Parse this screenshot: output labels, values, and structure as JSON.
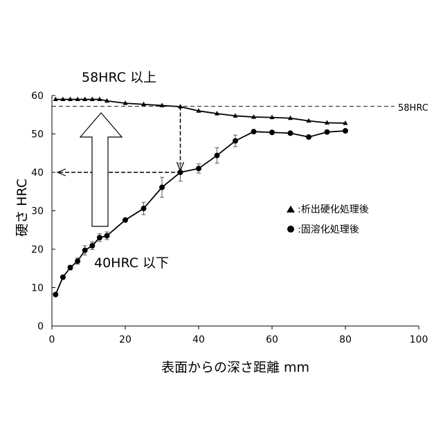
{
  "chart_data": {
    "type": "line",
    "xlabel": "表面からの深さ距離 mm",
    "ylabel": "硬さ HRC",
    "xlim": [
      0,
      100
    ],
    "ylim": [
      0,
      60
    ],
    "xticks": [
      0,
      20,
      40,
      60,
      80,
      100
    ],
    "yticks": [
      0,
      10,
      20,
      30,
      40,
      50,
      60
    ],
    "grid": false,
    "legend_position": "right-middle",
    "series": [
      {
        "name": "▲：析出硬化処理後",
        "legend_label": ":析出硬化処理後",
        "marker": "triangle",
        "x": [
          1,
          3,
          5,
          7,
          9,
          11,
          13,
          15,
          20,
          25,
          30,
          35,
          40,
          45,
          50,
          55,
          60,
          65,
          70,
          75,
          80
        ],
        "y": [
          59,
          59,
          59,
          59,
          59,
          59,
          59,
          58.6,
          58,
          57.7,
          57.4,
          57.1,
          56,
          55.3,
          54.7,
          54.4,
          54.3,
          54.1,
          53.4,
          52.9,
          52.8
        ]
      },
      {
        "name": "●：固溶化処理後",
        "legend_label": ":固溶化処理後",
        "marker": "circle",
        "x": [
          1,
          3,
          5,
          7,
          9,
          11,
          13,
          15,
          20,
          25,
          30,
          35,
          40,
          45,
          50,
          55,
          60,
          65,
          70,
          75,
          80
        ],
        "y": [
          8.2,
          12.7,
          15.2,
          16.9,
          19.7,
          20.9,
          23,
          23.5,
          27.6,
          30.6,
          36.1,
          40,
          41,
          44.4,
          48.2,
          50.6,
          50.4,
          50.2,
          49.2,
          50.5,
          50.8
        ],
        "error": [
          0,
          0,
          0.6,
          0.8,
          1.2,
          1.0,
          1.0,
          1.0,
          0,
          1.6,
          2.6,
          2.3,
          1.2,
          2.0,
          1.5,
          0,
          0,
          0,
          0,
          0,
          0
        ]
      }
    ],
    "annotations": {
      "threshold_label": "58HRC",
      "threshold_value": 57.2,
      "upper_label": "58HRC 以上",
      "lower_label": "40HRC 以下",
      "marker_point": {
        "x": 35,
        "y": 40
      }
    }
  }
}
